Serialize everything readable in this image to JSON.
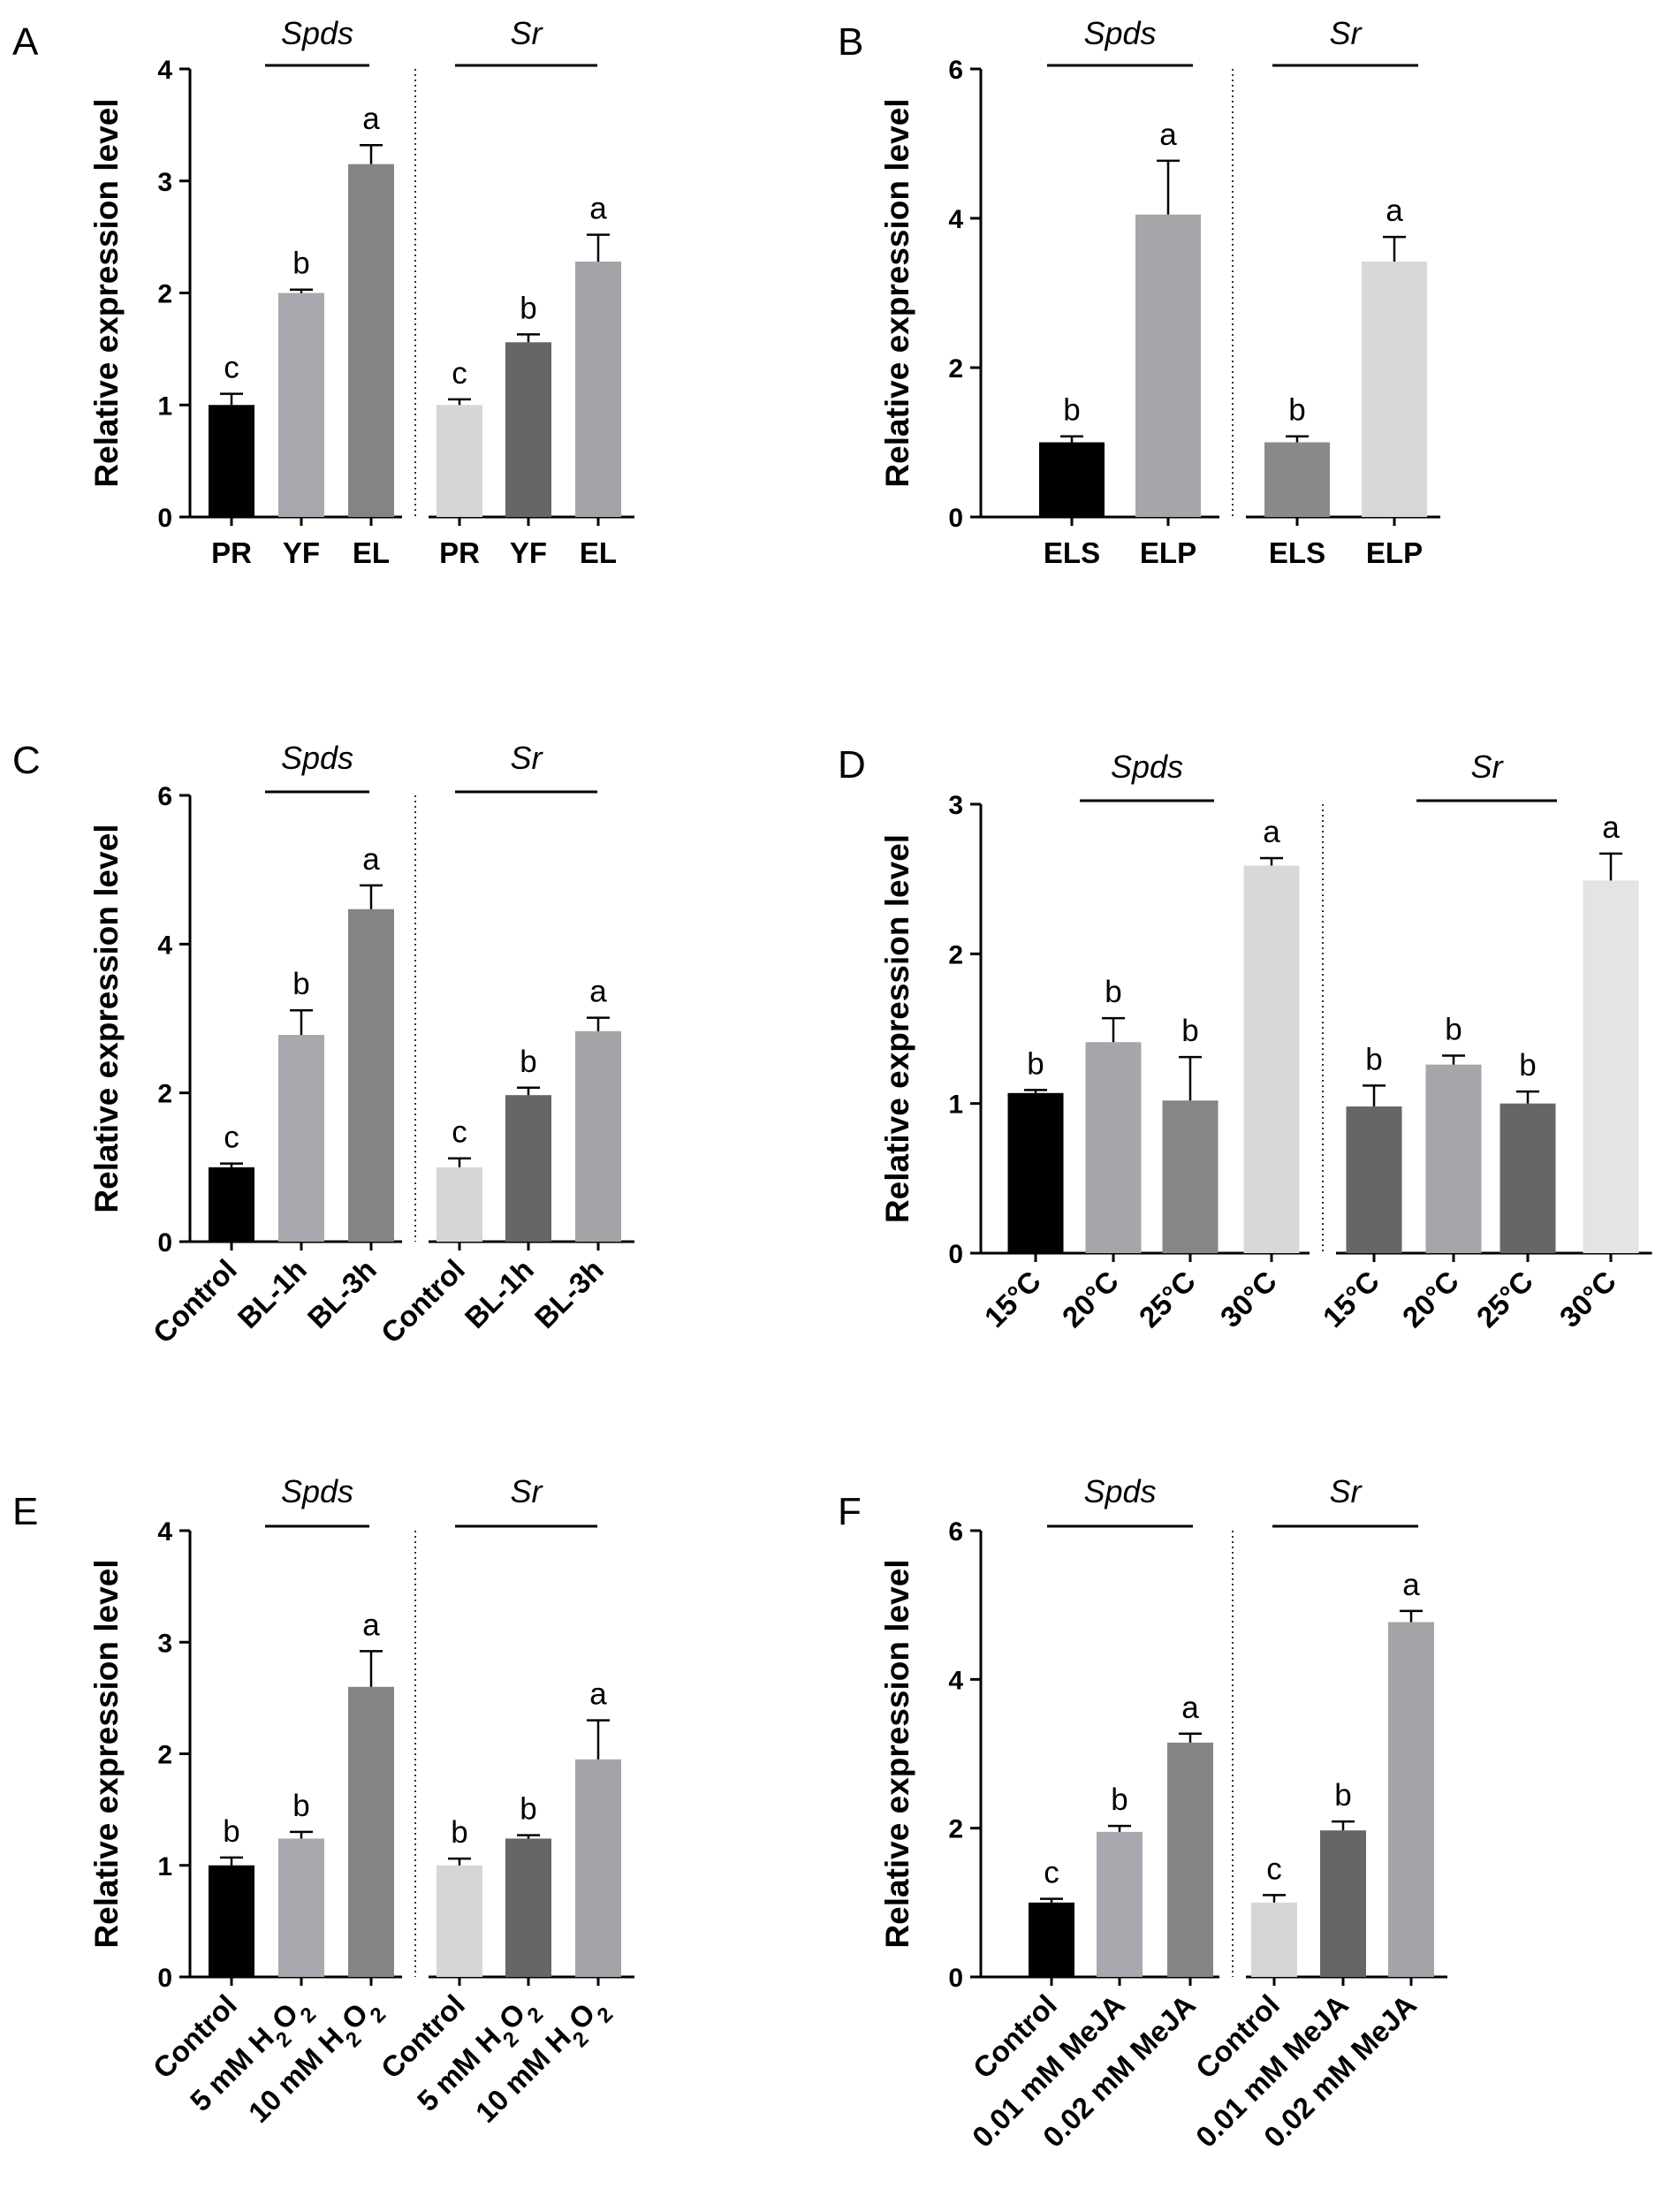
{
  "figure": {
    "y_axis_label": "Relative expression level",
    "genes": [
      "Spds",
      "Sr"
    ]
  },
  "chart_data": [
    {
      "type": "bar",
      "panel": "A",
      "ylim": [
        0,
        4
      ],
      "yticks": [
        0,
        1,
        2,
        3,
        4
      ],
      "ylabel": "Relative expression level",
      "categories": [
        "PR",
        "YF",
        "EL",
        "PR",
        "YF",
        "EL"
      ],
      "groups": [
        "Spds",
        "Spds",
        "Spds",
        "Sr",
        "Sr",
        "Sr"
      ],
      "values": [
        1.0,
        2.0,
        3.15,
        1.0,
        1.56,
        2.28
      ],
      "errors": [
        0.1,
        0.03,
        0.17,
        0.05,
        0.07,
        0.24
      ],
      "significance": [
        "c",
        "b",
        "a",
        "c",
        "b",
        "a"
      ],
      "colors": [
        "#000000",
        "#a8a8ae",
        "#848484",
        "#d6d6d6",
        "#666666",
        "#a4a4a8"
      ]
    },
    {
      "type": "bar",
      "panel": "B",
      "ylim": [
        0,
        6
      ],
      "yticks": [
        0,
        2,
        4,
        6
      ],
      "ylabel": "Relative expression level",
      "categories": [
        "ELS",
        "ELP",
        "ELS",
        "ELP"
      ],
      "groups": [
        "Spds",
        "Spds",
        "Sr",
        "Sr"
      ],
      "values": [
        1.0,
        4.05,
        1.0,
        3.42
      ],
      "errors": [
        0.08,
        0.72,
        0.08,
        0.33
      ],
      "significance": [
        "b",
        "a",
        "b",
        "a"
      ],
      "colors": [
        "#000000",
        "#a6a6aa",
        "#8a8a8a",
        "#d8d8d8"
      ]
    },
    {
      "type": "bar",
      "panel": "C",
      "ylim": [
        0,
        6
      ],
      "yticks": [
        0,
        2,
        4,
        6
      ],
      "ylabel": "Relative expression level",
      "categories": [
        "Control",
        "BL-1h",
        "BL-3h",
        "Control",
        "BL-1h",
        "BL-3h"
      ],
      "groups": [
        "Spds",
        "Spds",
        "Spds",
        "Sr",
        "Sr",
        "Sr"
      ],
      "values": [
        1.0,
        2.78,
        4.47,
        1.0,
        1.97,
        2.83
      ],
      "errors": [
        0.05,
        0.33,
        0.32,
        0.12,
        0.1,
        0.18
      ],
      "significance": [
        "c",
        "b",
        "a",
        "c",
        "b",
        "a"
      ],
      "colors": [
        "#000000",
        "#a8a8ae",
        "#848484",
        "#d6d6d6",
        "#666666",
        "#a4a4a8"
      ]
    },
    {
      "type": "bar",
      "panel": "D",
      "ylim": [
        0,
        3
      ],
      "yticks": [
        0,
        1,
        2,
        3
      ],
      "ylabel": "Relative expression level",
      "categories": [
        "15°C",
        "20°C",
        "25°C",
        "30°C",
        "15°C",
        "20°C",
        "25°C",
        "30°C"
      ],
      "groups": [
        "Spds",
        "Spds",
        "Spds",
        "Spds",
        "Sr",
        "Sr",
        "Sr",
        "Sr"
      ],
      "values": [
        1.07,
        1.41,
        1.02,
        2.59,
        0.98,
        1.26,
        1.0,
        2.49
      ],
      "errors": [
        0.02,
        0.16,
        0.29,
        0.05,
        0.14,
        0.06,
        0.08,
        0.18
      ],
      "significance": [
        "b",
        "b",
        "b",
        "a",
        "b",
        "b",
        "b",
        "a"
      ],
      "colors": [
        "#000000",
        "#a6a6aa",
        "#868686",
        "#d8d8d8",
        "#666666",
        "#a6a6aa",
        "#666666",
        "#e4e4e4"
      ]
    },
    {
      "type": "bar",
      "panel": "E",
      "ylim": [
        0,
        4
      ],
      "yticks": [
        0,
        1,
        2,
        3,
        4
      ],
      "ylabel": "Relative expression level",
      "categories": [
        "Control",
        "5 mM H2O2",
        "10 mM H2O2",
        "Control",
        "5 mM H2O2",
        "10 mM H2O2"
      ],
      "groups": [
        "Spds",
        "Spds",
        "Spds",
        "Sr",
        "Sr",
        "Sr"
      ],
      "values": [
        1.0,
        1.24,
        2.6,
        1.0,
        1.24,
        1.95
      ],
      "errors": [
        0.07,
        0.06,
        0.32,
        0.06,
        0.03,
        0.35
      ],
      "significance": [
        "b",
        "b",
        "a",
        "b",
        "b",
        "a"
      ],
      "colors": [
        "#000000",
        "#a8a8ae",
        "#848484",
        "#d6d6d6",
        "#666666",
        "#a4a4a8"
      ]
    },
    {
      "type": "bar",
      "panel": "F",
      "ylim": [
        0,
        6
      ],
      "yticks": [
        0,
        2,
        4,
        6
      ],
      "ylabel": "Relative expression level",
      "categories": [
        "Control",
        "0.01 mM MeJA",
        "0.02 mM MeJA",
        "Control",
        "0.01 mM MeJA",
        "0.02 mM MeJA"
      ],
      "groups": [
        "Spds",
        "Spds",
        "Spds",
        "Sr",
        "Sr",
        "Sr"
      ],
      "values": [
        1.0,
        1.95,
        3.15,
        1.0,
        1.97,
        4.77
      ],
      "errors": [
        0.05,
        0.08,
        0.12,
        0.1,
        0.12,
        0.15
      ],
      "significance": [
        "c",
        "b",
        "a",
        "c",
        "b",
        "a"
      ],
      "colors": [
        "#000000",
        "#a8a8ae",
        "#848484",
        "#d6d6d6",
        "#666666",
        "#a4a4a8"
      ]
    }
  ]
}
